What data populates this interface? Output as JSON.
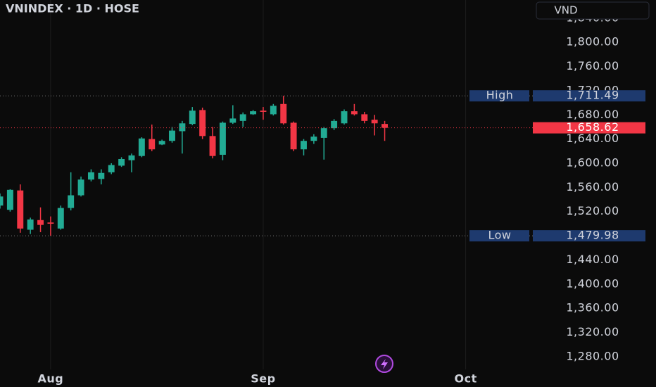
{
  "chart_data": {
    "type": "candlestick",
    "title": "VNINDEX · 1D · HOSE",
    "currency": "VND",
    "up_color": "#22ab94",
    "down_color": "#f23645",
    "x": [
      0,
      1,
      2,
      3,
      4,
      5,
      6,
      7,
      8,
      9,
      10,
      11,
      12,
      13,
      14,
      15,
      16,
      17,
      18,
      19,
      20,
      21,
      22,
      23,
      24,
      25,
      26,
      27,
      28,
      29,
      30,
      31,
      32,
      33,
      34,
      35,
      36,
      37,
      38
    ],
    "open": [
      1530,
      1523,
      1555,
      1490,
      1506,
      1502,
      1492,
      1526,
      1547,
      1573,
      1574,
      1585,
      1596,
      1605,
      1612,
      1640,
      1631,
      1637,
      1653,
      1665,
      1688,
      1645,
      1614,
      1667,
      1670,
      1681,
      1687,
      1681,
      1698,
      1667,
      1623,
      1637,
      1642,
      1658,
      1666,
      1686,
      1681,
      1672,
      1665
    ],
    "high": [
      1550,
      1557,
      1565,
      1510,
      1527,
      1512,
      1530,
      1585,
      1578,
      1590,
      1590,
      1600,
      1610,
      1616,
      1643,
      1664,
      1639,
      1660,
      1670,
      1693,
      1692,
      1660,
      1669,
      1696,
      1684,
      1688,
      1693,
      1698,
      1711.49,
      1669,
      1640,
      1648,
      1660,
      1673,
      1689,
      1698,
      1685,
      1680,
      1670
    ],
    "low": [
      1525,
      1520,
      1485,
      1483,
      1486,
      1479.98,
      1490,
      1522,
      1545,
      1570,
      1565,
      1582,
      1594,
      1585,
      1610,
      1620,
      1630,
      1634,
      1616,
      1663,
      1640,
      1608,
      1605,
      1665,
      1660,
      1680,
      1672,
      1679,
      1664,
      1620,
      1613,
      1632,
      1606,
      1655,
      1664,
      1679,
      1666,
      1646,
      1637
    ],
    "close": [
      1545,
      1556,
      1492,
      1507,
      1498,
      1500,
      1526,
      1547,
      1573,
      1585,
      1584,
      1597,
      1607,
      1613,
      1641,
      1623,
      1637,
      1654,
      1666,
      1687,
      1645,
      1612,
      1667,
      1674,
      1681,
      1686,
      1685,
      1695,
      1666,
      1623,
      1637,
      1644,
      1658,
      1670,
      1686,
      1681,
      1670,
      1666,
      1658.62
    ],
    "xlim": [
      0,
      64.8
    ],
    "xticks": [
      {
        "value": 5,
        "label": "Aug"
      },
      {
        "value": 26,
        "label": "Sep"
      },
      {
        "value": 46,
        "label": "Oct"
      }
    ],
    "ylim": [
      1259,
      1870
    ],
    "yticks": [
      {
        "value": 1280,
        "label": "1,280.00"
      },
      {
        "value": 1320,
        "label": "1,320.00"
      },
      {
        "value": 1360,
        "label": "1,360.00"
      },
      {
        "value": 1400,
        "label": "1,400.00"
      },
      {
        "value": 1440,
        "label": "1,440.00"
      },
      {
        "value": 1480,
        "label": "1,480.00"
      },
      {
        "value": 1520,
        "label": "1,520.00"
      },
      {
        "value": 1560,
        "label": "1,560.00"
      },
      {
        "value": 1600,
        "label": "1,600.00"
      },
      {
        "value": 1640,
        "label": "1,640.00"
      },
      {
        "value": 1680,
        "label": "1,680.00"
      },
      {
        "value": 1720,
        "label": "1,720.00"
      },
      {
        "value": 1760,
        "label": "1,760.00"
      },
      {
        "value": 1800,
        "label": "1,800.00"
      },
      {
        "value": 1840,
        "label": "1,840.00"
      }
    ],
    "grid": true,
    "levels": [
      {
        "name": "High",
        "value": 1711.49,
        "value_label": "1,711.49"
      },
      {
        "name": "Low",
        "value": 1479.98,
        "value_label": "1,479.98"
      }
    ],
    "last_price": {
      "value": 1658.62,
      "value_label": "1,658.62"
    }
  }
}
